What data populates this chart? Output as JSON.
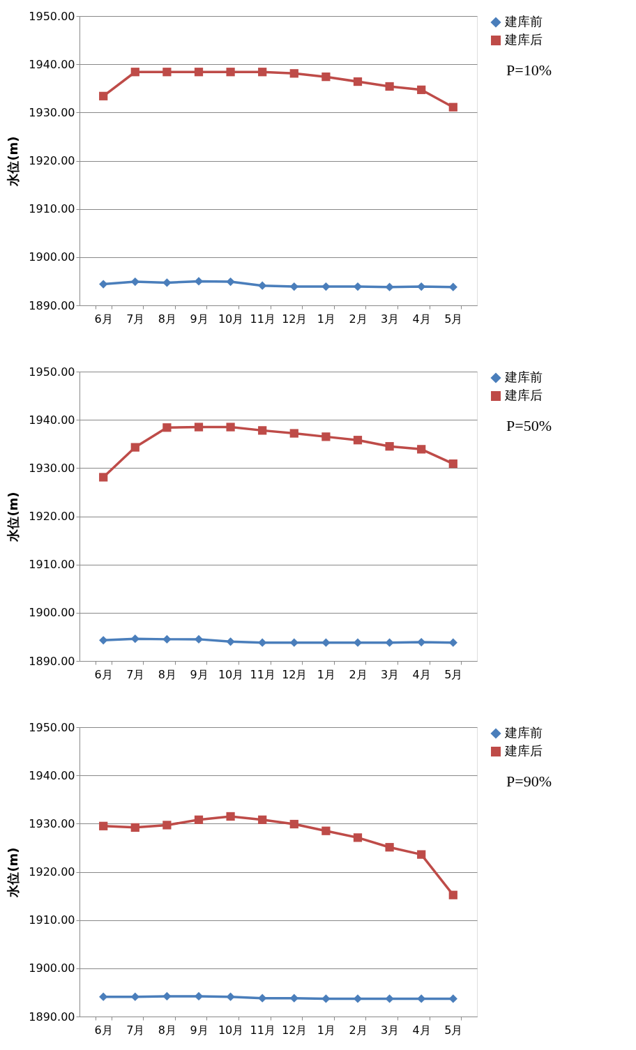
{
  "chart_data": [
    {
      "type": "line",
      "ylabel": "水位(m)",
      "annotations": [
        "P=10%"
      ],
      "categories": [
        "6月",
        "7月",
        "8月",
        "9月",
        "10月",
        "11月",
        "12月",
        "1月",
        "2月",
        "3月",
        "4月",
        "5月"
      ],
      "series": [
        {
          "name": "建库前",
          "color": "#4a7ebb",
          "marker": "diamond",
          "values": [
            1894.4,
            1894.9,
            1894.7,
            1895.0,
            1894.9,
            1894.1,
            1893.9,
            1893.9,
            1893.9,
            1893.8,
            1893.9,
            1893.8
          ]
        },
        {
          "name": "建库后",
          "color": "#be4b48",
          "marker": "square",
          "values": [
            1933.4,
            1938.4,
            1938.4,
            1938.4,
            1938.4,
            1938.4,
            1938.1,
            1937.4,
            1936.4,
            1935.4,
            1934.7,
            1931.1
          ]
        }
      ],
      "ylim": [
        1890,
        1950
      ],
      "yticks": [
        {
          "value": 1890,
          "label": "1890.00"
        },
        {
          "value": 1900,
          "label": "1900.00"
        },
        {
          "value": 1910,
          "label": "1910.00"
        },
        {
          "value": 1920,
          "label": "1920.00"
        },
        {
          "value": 1930,
          "label": "1930.00"
        },
        {
          "value": 1940,
          "label": "1940.00"
        },
        {
          "value": 1950,
          "label": "1950.00"
        }
      ],
      "grid": "y",
      "legend": "right"
    },
    {
      "type": "line",
      "ylabel": "水位(m)",
      "annotations": [
        "P=50%"
      ],
      "categories": [
        "6月",
        "7月",
        "8月",
        "9月",
        "10月",
        "11月",
        "12月",
        "1月",
        "2月",
        "3月",
        "4月",
        "5月"
      ],
      "series": [
        {
          "name": "建库前",
          "color": "#4a7ebb",
          "marker": "diamond",
          "values": [
            1894.3,
            1894.6,
            1894.5,
            1894.5,
            1894.0,
            1893.8,
            1893.8,
            1893.8,
            1893.8,
            1893.8,
            1893.9,
            1893.8
          ]
        },
        {
          "name": "建库后",
          "color": "#be4b48",
          "marker": "square",
          "values": [
            1928.1,
            1934.3,
            1938.4,
            1938.5,
            1938.5,
            1937.8,
            1937.2,
            1936.5,
            1935.8,
            1934.5,
            1933.9,
            1930.9
          ]
        }
      ],
      "ylim": [
        1890,
        1950
      ],
      "yticks": [
        {
          "value": 1890,
          "label": "1890.00"
        },
        {
          "value": 1900,
          "label": "1900.00"
        },
        {
          "value": 1910,
          "label": "1910.00"
        },
        {
          "value": 1920,
          "label": "1920.00"
        },
        {
          "value": 1930,
          "label": "1930.00"
        },
        {
          "value": 1940,
          "label": "1940.00"
        },
        {
          "value": 1950,
          "label": "1950.00"
        }
      ],
      "grid": "y",
      "legend": "right"
    },
    {
      "type": "line",
      "ylabel": "水位(m)",
      "annotations": [
        "P=90%"
      ],
      "categories": [
        "6月",
        "7月",
        "8月",
        "9月",
        "10月",
        "11月",
        "12月",
        "1月",
        "2月",
        "3月",
        "4月",
        "5月"
      ],
      "series": [
        {
          "name": "建库前",
          "color": "#4a7ebb",
          "marker": "diamond",
          "values": [
            1894.1,
            1894.1,
            1894.2,
            1894.2,
            1894.1,
            1893.8,
            1893.8,
            1893.7,
            1893.7,
            1893.7,
            1893.7,
            1893.7
          ]
        },
        {
          "name": "建库后",
          "color": "#be4b48",
          "marker": "square",
          "values": [
            1929.5,
            1929.2,
            1929.7,
            1930.8,
            1931.5,
            1930.8,
            1929.9,
            1928.5,
            1927.1,
            1925.1,
            1923.6,
            1915.2
          ]
        }
      ],
      "ylim": [
        1890,
        1950
      ],
      "yticks": [
        {
          "value": 1890,
          "label": "1890.00"
        },
        {
          "value": 1900,
          "label": "1900.00"
        },
        {
          "value": 1910,
          "label": "1910.00"
        },
        {
          "value": 1920,
          "label": "1920.00"
        },
        {
          "value": 1930,
          "label": "1930.00"
        },
        {
          "value": 1940,
          "label": "1940.00"
        },
        {
          "value": 1950,
          "label": "1950.00"
        }
      ],
      "grid": "y",
      "legend": "right"
    }
  ]
}
